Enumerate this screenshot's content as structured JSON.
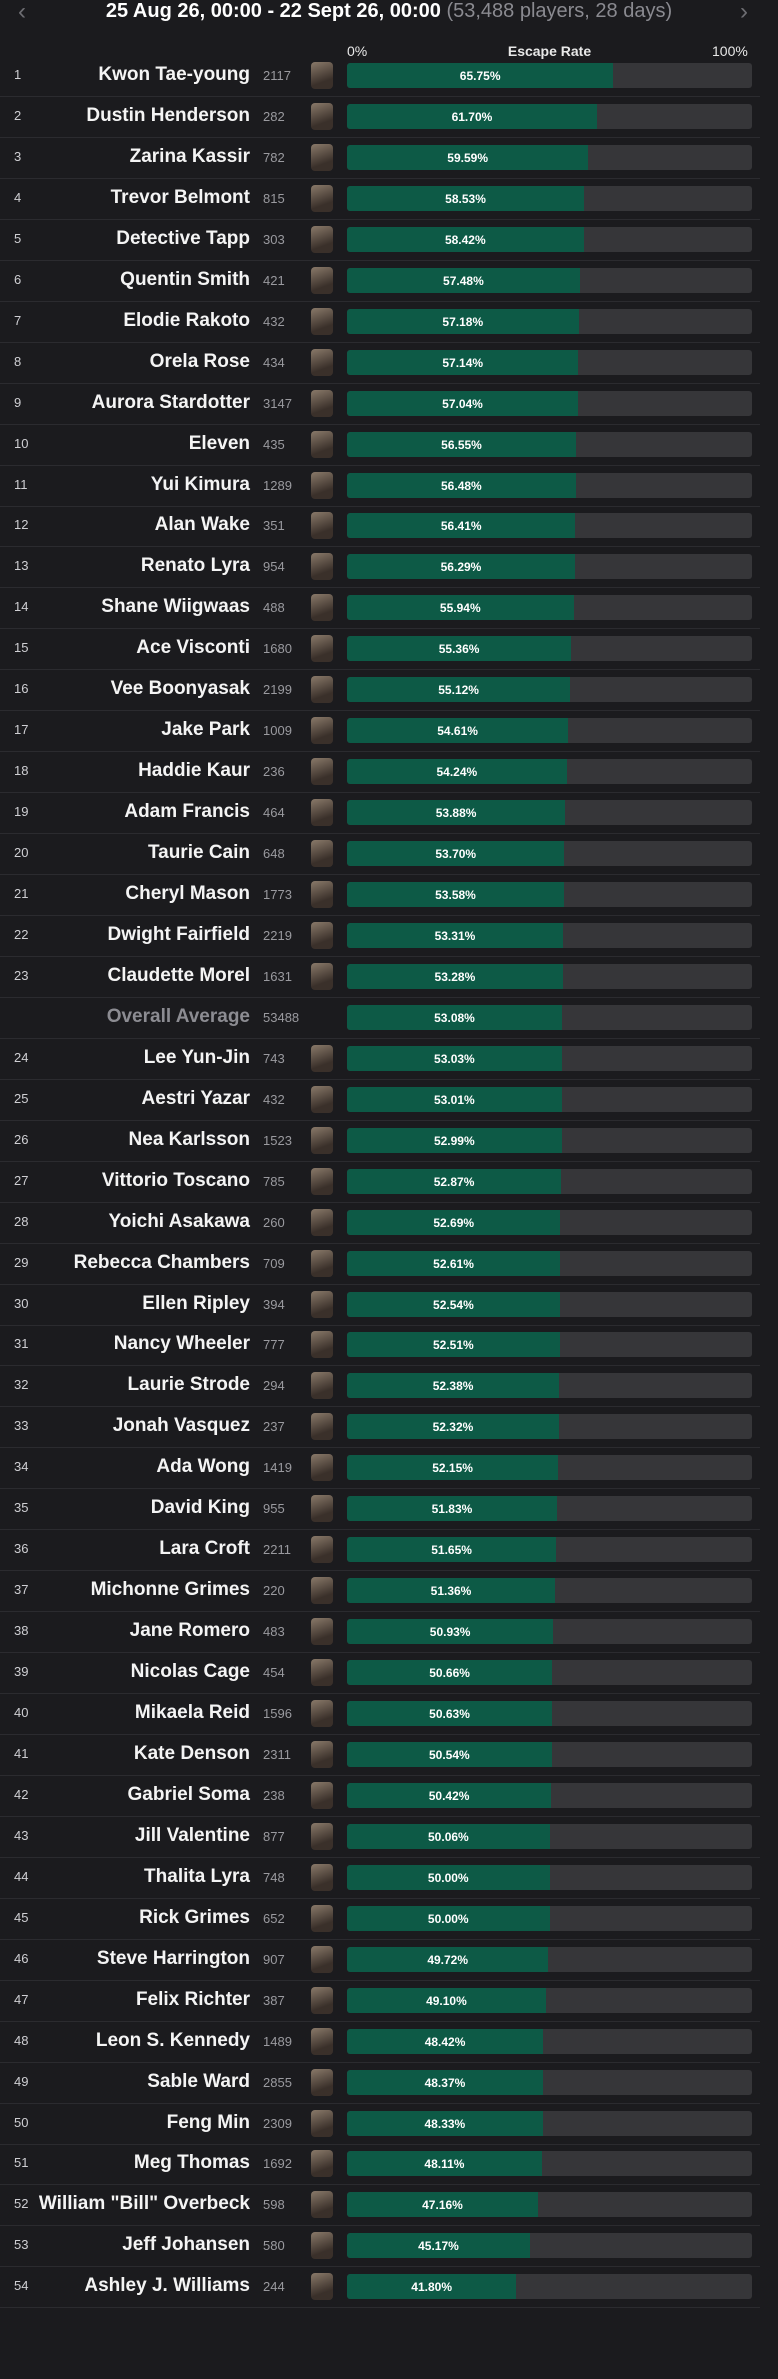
{
  "header": {
    "date_range": "25 Aug 26, 00:00 - 22 Sept 26, 00:00",
    "summary": "(53,488 players, 28 days)",
    "axis_title": "Escape Rate",
    "scale": [
      {
        "value": 0,
        "label": "0%"
      },
      {
        "value": 100,
        "label": "100%"
      }
    ]
  },
  "rows": [
    {
      "rank": 1,
      "name": "Kwon Tae-young",
      "games": 2117,
      "rate": 65.75,
      "rate_label": "65.75%"
    },
    {
      "rank": 2,
      "name": "Dustin Henderson",
      "games": 282,
      "rate": 61.7,
      "rate_label": "61.70%"
    },
    {
      "rank": 3,
      "name": "Zarina Kassir",
      "games": 782,
      "rate": 59.59,
      "rate_label": "59.59%"
    },
    {
      "rank": 4,
      "name": "Trevor Belmont",
      "games": 815,
      "rate": 58.53,
      "rate_label": "58.53%"
    },
    {
      "rank": 5,
      "name": "Detective Tapp",
      "games": 303,
      "rate": 58.42,
      "rate_label": "58.42%"
    },
    {
      "rank": 6,
      "name": "Quentin Smith",
      "games": 421,
      "rate": 57.48,
      "rate_label": "57.48%"
    },
    {
      "rank": 7,
      "name": "Elodie Rakoto",
      "games": 432,
      "rate": 57.18,
      "rate_label": "57.18%"
    },
    {
      "rank": 8,
      "name": "Orela Rose",
      "games": 434,
      "rate": 57.14,
      "rate_label": "57.14%"
    },
    {
      "rank": 9,
      "name": "Aurora Stardotter",
      "games": 3147,
      "rate": 57.04,
      "rate_label": "57.04%"
    },
    {
      "rank": 10,
      "name": "Eleven",
      "games": 435,
      "rate": 56.55,
      "rate_label": "56.55%"
    },
    {
      "rank": 11,
      "name": "Yui Kimura",
      "games": 1289,
      "rate": 56.48,
      "rate_label": "56.48%"
    },
    {
      "rank": 12,
      "name": "Alan Wake",
      "games": 351,
      "rate": 56.41,
      "rate_label": "56.41%"
    },
    {
      "rank": 13,
      "name": "Renato Lyra",
      "games": 954,
      "rate": 56.29,
      "rate_label": "56.29%"
    },
    {
      "rank": 14,
      "name": "Shane Wiigwaas",
      "games": 488,
      "rate": 55.94,
      "rate_label": "55.94%"
    },
    {
      "rank": 15,
      "name": "Ace Visconti",
      "games": 1680,
      "rate": 55.36,
      "rate_label": "55.36%"
    },
    {
      "rank": 16,
      "name": "Vee Boonyasak",
      "games": 2199,
      "rate": 55.12,
      "rate_label": "55.12%"
    },
    {
      "rank": 17,
      "name": "Jake Park",
      "games": 1009,
      "rate": 54.61,
      "rate_label": "54.61%"
    },
    {
      "rank": 18,
      "name": "Haddie Kaur",
      "games": 236,
      "rate": 54.24,
      "rate_label": "54.24%"
    },
    {
      "rank": 19,
      "name": "Adam Francis",
      "games": 464,
      "rate": 53.88,
      "rate_label": "53.88%"
    },
    {
      "rank": 20,
      "name": "Taurie Cain",
      "games": 648,
      "rate": 53.7,
      "rate_label": "53.70%"
    },
    {
      "rank": 21,
      "name": "Cheryl Mason",
      "games": 1773,
      "rate": 53.58,
      "rate_label": "53.58%"
    },
    {
      "rank": 22,
      "name": "Dwight Fairfield",
      "games": 2219,
      "rate": 53.31,
      "rate_label": "53.31%"
    },
    {
      "rank": 23,
      "name": "Claudette Morel",
      "games": 1631,
      "rate": 53.28,
      "rate_label": "53.28%"
    },
    {
      "name": "Overall Average",
      "games": 53488,
      "rate": 53.08,
      "rate_label": "53.08%"
    },
    {
      "rank": 24,
      "name": "Lee Yun-Jin",
      "games": 743,
      "rate": 53.03,
      "rate_label": "53.03%"
    },
    {
      "rank": 25,
      "name": "Aestri Yazar",
      "games": 432,
      "rate": 53.01,
      "rate_label": "53.01%"
    },
    {
      "rank": 26,
      "name": "Nea Karlsson",
      "games": 1523,
      "rate": 52.99,
      "rate_label": "52.99%"
    },
    {
      "rank": 27,
      "name": "Vittorio Toscano",
      "games": 785,
      "rate": 52.87,
      "rate_label": "52.87%"
    },
    {
      "rank": 28,
      "name": "Yoichi Asakawa",
      "games": 260,
      "rate": 52.69,
      "rate_label": "52.69%"
    },
    {
      "rank": 29,
      "name": "Rebecca Chambers",
      "games": 709,
      "rate": 52.61,
      "rate_label": "52.61%"
    },
    {
      "rank": 30,
      "name": "Ellen Ripley",
      "games": 394,
      "rate": 52.54,
      "rate_label": "52.54%"
    },
    {
      "rank": 31,
      "name": "Nancy Wheeler",
      "games": 777,
      "rate": 52.51,
      "rate_label": "52.51%"
    },
    {
      "rank": 32,
      "name": "Laurie Strode",
      "games": 294,
      "rate": 52.38,
      "rate_label": "52.38%"
    },
    {
      "rank": 33,
      "name": "Jonah Vasquez",
      "games": 237,
      "rate": 52.32,
      "rate_label": "52.32%"
    },
    {
      "rank": 34,
      "name": "Ada Wong",
      "games": 1419,
      "rate": 52.15,
      "rate_label": "52.15%"
    },
    {
      "rank": 35,
      "name": "David King",
      "games": 955,
      "rate": 51.83,
      "rate_label": "51.83%"
    },
    {
      "rank": 36,
      "name": "Lara Croft",
      "games": 2211,
      "rate": 51.65,
      "rate_label": "51.65%"
    },
    {
      "rank": 37,
      "name": "Michonne Grimes",
      "games": 220,
      "rate": 51.36,
      "rate_label": "51.36%"
    },
    {
      "rank": 38,
      "name": "Jane Romero",
      "games": 483,
      "rate": 50.93,
      "rate_label": "50.93%"
    },
    {
      "rank": 39,
      "name": "Nicolas Cage",
      "games": 454,
      "rate": 50.66,
      "rate_label": "50.66%"
    },
    {
      "rank": 40,
      "name": "Mikaela Reid",
      "games": 1596,
      "rate": 50.63,
      "rate_label": "50.63%"
    },
    {
      "rank": 41,
      "name": "Kate Denson",
      "games": 2311,
      "rate": 50.54,
      "rate_label": "50.54%"
    },
    {
      "rank": 42,
      "name": "Gabriel Soma",
      "games": 238,
      "rate": 50.42,
      "rate_label": "50.42%"
    },
    {
      "rank": 43,
      "name": "Jill Valentine",
      "games": 877,
      "rate": 50.06,
      "rate_label": "50.06%"
    },
    {
      "rank": 44,
      "name": "Thalita Lyra",
      "games": 748,
      "rate": 50.0,
      "rate_label": "50.00%"
    },
    {
      "rank": 45,
      "name": "Rick Grimes",
      "games": 652,
      "rate": 50.0,
      "rate_label": "50.00%"
    },
    {
      "rank": 46,
      "name": "Steve Harrington",
      "games": 907,
      "rate": 49.72,
      "rate_label": "49.72%"
    },
    {
      "rank": 47,
      "name": "Felix Richter",
      "games": 387,
      "rate": 49.1,
      "rate_label": "49.10%"
    },
    {
      "rank": 48,
      "name": "Leon S. Kennedy",
      "games": 1489,
      "rate": 48.42,
      "rate_label": "48.42%"
    },
    {
      "rank": 49,
      "name": "Sable Ward",
      "games": 2855,
      "rate": 48.37,
      "rate_label": "48.37%"
    },
    {
      "rank": 50,
      "name": "Feng Min",
      "games": 2309,
      "rate": 48.33,
      "rate_label": "48.33%"
    },
    {
      "rank": 51,
      "name": "Meg Thomas",
      "games": 1692,
      "rate": 48.11,
      "rate_label": "48.11%"
    },
    {
      "rank": 52,
      "name": "William \"Bill\" Overbeck",
      "games": 598,
      "rate": 47.16,
      "rate_label": "47.16%"
    },
    {
      "rank": 53,
      "name": "Jeff Johansen",
      "games": 580,
      "rate": 45.17,
      "rate_label": "45.17%"
    },
    {
      "rank": 54,
      "name": "Ashley J. Williams",
      "games": 244,
      "rate": 41.8,
      "rate_label": "41.80%"
    }
  ]
}
